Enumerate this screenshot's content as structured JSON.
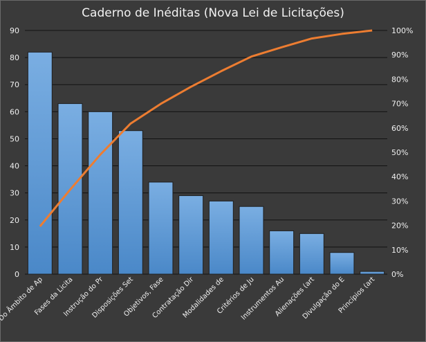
{
  "chart_data": {
    "type": "bar",
    "title": "Caderno de Inéditas (Nova Lei de Licitações)",
    "categories": [
      "Do Âmbito de Ap",
      "Fases da Licita",
      "Instrução do Pr",
      "Disposições Set",
      "Objetivos, Fase",
      "Contratação Dir",
      "Modalidades de",
      "Critérios de Ju",
      "Instrumentos Au",
      "Alienações (art",
      "Divulgação do E",
      "Princípios (art"
    ],
    "series": [
      {
        "type": "bar",
        "axis": "left",
        "color": "#5b9bd5",
        "values": [
          82,
          63,
          60,
          53,
          34,
          29,
          27,
          25,
          16,
          15,
          8,
          1
        ]
      },
      {
        "type": "line",
        "axis": "right",
        "color": "#ed7d31",
        "values": [
          19.6,
          34.7,
          49.1,
          61.8,
          69.9,
          76.9,
          83.3,
          89.3,
          93.1,
          96.7,
          98.6,
          100
        ]
      }
    ],
    "left_axis": {
      "min": 0,
      "max": 90,
      "step": 10,
      "ticks": [
        "0",
        "10",
        "20",
        "30",
        "40",
        "50",
        "60",
        "70",
        "80",
        "90"
      ]
    },
    "right_axis": {
      "min": 0,
      "max": 100,
      "step": 10,
      "ticks": [
        "0%",
        "10%",
        "20%",
        "30%",
        "40%",
        "50%",
        "60%",
        "70%",
        "80%",
        "90%",
        "100%"
      ]
    },
    "grid": true,
    "legend": "none"
  }
}
